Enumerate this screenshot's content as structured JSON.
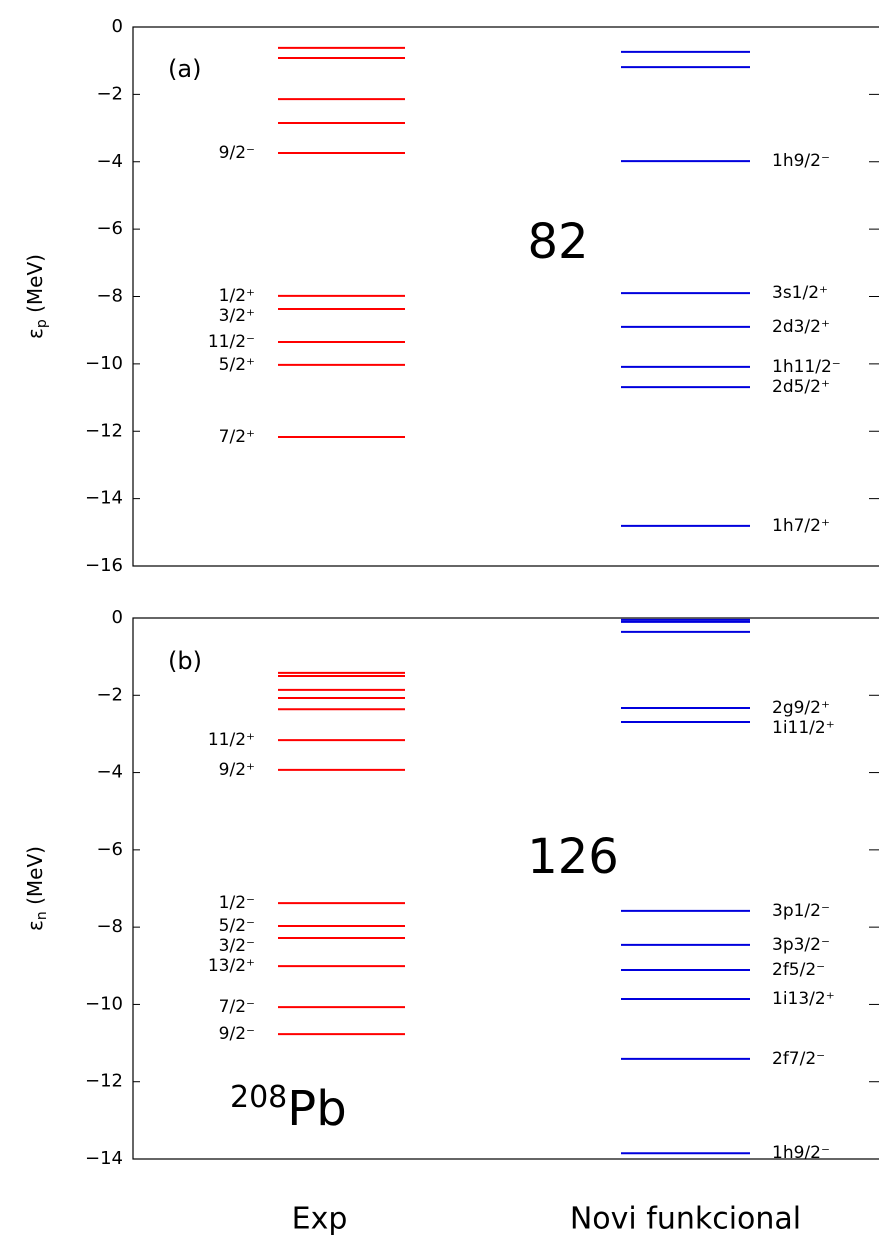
{
  "chart_data": [
    {
      "type": "levels",
      "panel_label": "(a)",
      "magic_number": "82",
      "ylabel": {
        "symbol": "ε",
        "subscript": "p",
        "unit": " (MeV)"
      },
      "ylim": [
        -16,
        0
      ],
      "yticks": [
        {
          "value": -16,
          "label": "−16"
        },
        {
          "value": -14,
          "label": "−14"
        },
        {
          "value": -12,
          "label": "−12"
        },
        {
          "value": -10,
          "label": "−10"
        },
        {
          "value": -8,
          "label": "−8"
        },
        {
          "value": -6,
          "label": "−6"
        },
        {
          "value": -4,
          "label": "−4"
        },
        {
          "value": -2,
          "label": "−2"
        },
        0
      ],
      "series": [
        {
          "color": "#ff0000",
          "values": [
            -0.62,
            -0.92,
            -2.14,
            -2.85,
            -3.74,
            -7.98,
            -8.37,
            -9.35,
            -10.03,
            -12.17
          ],
          "labels": [
            null,
            null,
            null,
            null,
            "9/2⁻",
            "1/2⁺",
            "3/2⁺",
            "11/2⁻",
            "5/2⁺",
            "7/2⁺"
          ]
        },
        {
          "color": "#0000dd",
          "values": [
            -0.74,
            -1.19,
            -3.98,
            -7.9,
            -8.9,
            -10.09,
            -10.69,
            -14.81
          ],
          "labels": [
            null,
            null,
            "1h9/2⁻",
            "3s1/2⁺",
            "2d3/2⁺",
            "1h11/2⁻",
            "2d5/2⁺",
            "1h7/2⁺"
          ]
        }
      ]
    },
    {
      "type": "levels",
      "panel_label": "(b)",
      "magic_number": "126",
      "nucleus": {
        "mass_number": "208",
        "element": "Pb"
      },
      "ylabel": {
        "symbol": "ε",
        "subscript": "n",
        "unit": " (MeV)"
      },
      "ylim": [
        -14,
        0
      ],
      "yticks": [
        {
          "value": -14,
          "label": "−14"
        },
        {
          "value": -12,
          "label": "−12"
        },
        {
          "value": -10,
          "label": "−10"
        },
        {
          "value": -8,
          "label": "−8"
        },
        {
          "value": -6,
          "label": "−6"
        },
        {
          "value": -4,
          "label": "−4"
        },
        {
          "value": -2,
          "label": "−2"
        },
        0
      ],
      "series": [
        {
          "name": "Exp",
          "color": "#ff0000",
          "values": [
            -1.42,
            -1.5,
            -1.86,
            -2.07,
            -2.36,
            -3.16,
            -3.93,
            -7.38,
            -7.97,
            -8.28,
            -9.01,
            -10.07,
            -10.77
          ],
          "labels": [
            null,
            null,
            null,
            null,
            null,
            "11/2⁺",
            "9/2⁺",
            "1/2⁻",
            "5/2⁻",
            "3/2⁻",
            "13/2⁺",
            "7/2⁻",
            "9/2⁻"
          ]
        },
        {
          "name": "Novi funkcional",
          "color": "#0000dd",
          "values": [
            -0.05,
            -0.1,
            -0.36,
            -2.33,
            -2.69,
            -7.58,
            -8.46,
            -9.11,
            -9.86,
            -11.41,
            -13.85
          ],
          "labels": [
            null,
            null,
            null,
            "2g9/2⁺",
            "1i11/2⁺",
            "3p1/2⁻",
            "3p3/2⁻",
            "2f5/2⁻",
            "1i13/2⁺",
            "2f7/2⁻",
            "1h9/2⁻"
          ]
        }
      ]
    }
  ]
}
